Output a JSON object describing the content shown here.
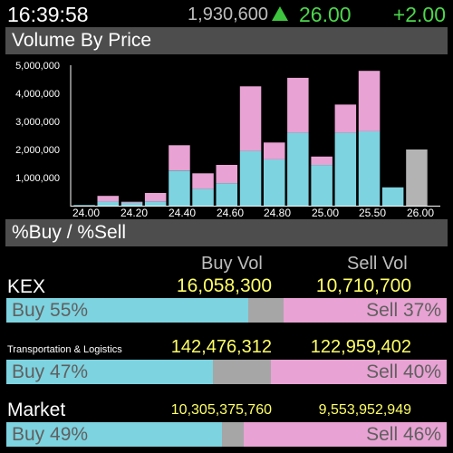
{
  "header": {
    "time": "16:39:58",
    "volume": "1,930,600",
    "price": "26.00",
    "change": "+2.00",
    "trend_icon": "up-triangle-icon",
    "up_color": "#4cd64c"
  },
  "volume_section": {
    "title": "Volume By Price"
  },
  "chart_data": {
    "type": "bar",
    "stacked": true,
    "title": "Volume By Price",
    "categories": [
      "24.00",
      "24.10",
      "24.20",
      "24.30",
      "24.40",
      "24.50",
      "24.60",
      "24.70",
      "24.80",
      "24.90",
      "25.00",
      "25.25",
      "25.50",
      "25.75",
      "26.00"
    ],
    "x_tick_labels": [
      "24.00",
      "24.20",
      "24.40",
      "24.60",
      "24.80",
      "25.00",
      "25.50",
      "26.00"
    ],
    "y_tick_labels": [
      "1,000,000",
      "2,000,000",
      "3,000,000",
      "4,000,000",
      "5,000,000"
    ],
    "ylim": [
      0,
      5000000
    ],
    "series": [
      {
        "values": [
          20000,
          150000,
          100000,
          150000,
          1250000,
          600000,
          800000,
          1950000,
          1650000,
          2600000,
          1450000,
          2600000,
          2650000,
          650000,
          0
        ],
        "color": "#7dd3e0"
      },
      {
        "values": [
          0,
          200000,
          40000,
          300000,
          900000,
          550000,
          650000,
          2300000,
          600000,
          1950000,
          300000,
          1000000,
          2150000,
          0,
          0
        ],
        "color": "#e8a2d3"
      },
      {
        "values": [
          0,
          0,
          0,
          0,
          0,
          0,
          0,
          0,
          0,
          0,
          0,
          0,
          0,
          0,
          2000000
        ],
        "color": "#b3b3b3"
      }
    ]
  },
  "buysell_section": {
    "title": "%Buy / %Sell"
  },
  "columns": {
    "buy_vol": "Buy Vol",
    "sell_vol": "Sell Vol"
  },
  "rows": [
    {
      "name": "KEX",
      "buy_vol": "16,058,300",
      "sell_vol": "10,710,700",
      "buy_label": "Buy 55%",
      "sell_label": "Sell 37%",
      "buy_pct": 55,
      "sell_pct": 37
    },
    {
      "name": "Transportation & Logistics",
      "buy_vol": "142,476,312",
      "sell_vol": "122,959,402",
      "buy_label": "Buy 47%",
      "sell_label": "Sell 40%",
      "buy_pct": 47,
      "sell_pct": 40
    },
    {
      "name": "Market",
      "buy_vol": "10,305,375,760",
      "sell_vol": "9,553,952,949",
      "buy_label": "Buy 49%",
      "sell_label": "Sell 46%",
      "buy_pct": 49,
      "sell_pct": 46
    }
  ]
}
